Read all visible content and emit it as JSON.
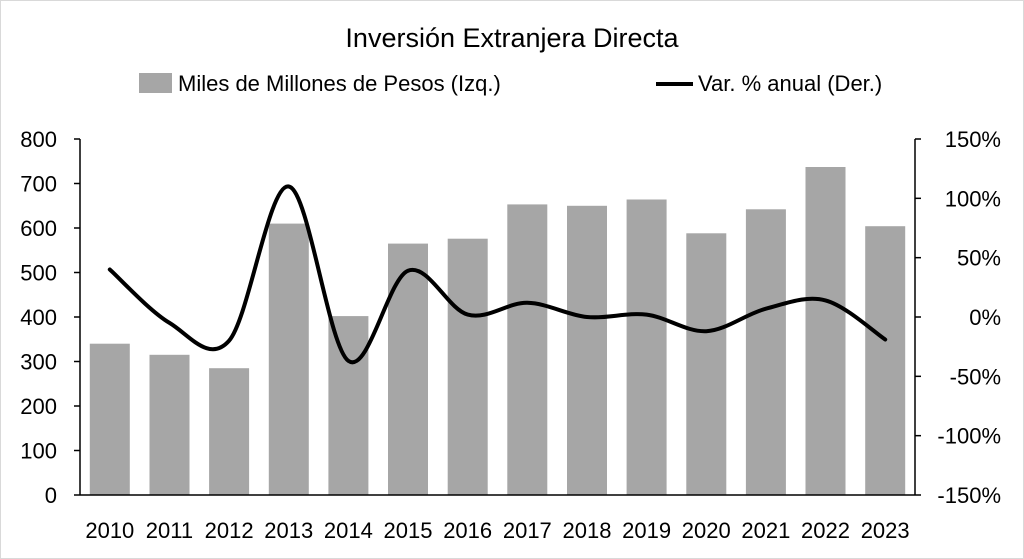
{
  "chart_data": {
    "type": "bar",
    "title": "Inversión Extranjera Directa",
    "categories": [
      "2010",
      "2011",
      "2012",
      "2013",
      "2014",
      "2015",
      "2016",
      "2017",
      "2018",
      "2019",
      "2020",
      "2021",
      "2022",
      "2023"
    ],
    "series": [
      {
        "name": "Miles de Millones de Pesos (Izq.)",
        "type": "bar",
        "axis": "left",
        "color": "#a6a6a6",
        "values": [
          340,
          315,
          285,
          610,
          402,
          565,
          576,
          653,
          650,
          664,
          588,
          642,
          737,
          604
        ]
      },
      {
        "name": "Var. % anual (Der.)",
        "type": "line",
        "axis": "right",
        "color": "#000000",
        "values": [
          40,
          -5,
          -20,
          110,
          -37,
          39,
          2,
          12,
          0,
          2,
          -12,
          7,
          14,
          -19
        ]
      }
    ],
    "y_left": {
      "min": 0,
      "max": 800,
      "ticks": [
        "0",
        "100",
        "200",
        "300",
        "400",
        "500",
        "600",
        "700",
        "800"
      ]
    },
    "y_right": {
      "min": -150,
      "max": 150,
      "ticks": [
        "-150%",
        "-100%",
        "-50%",
        "0%",
        "50%",
        "100%",
        "150%"
      ]
    },
    "grid": false,
    "legend_position": "top"
  }
}
